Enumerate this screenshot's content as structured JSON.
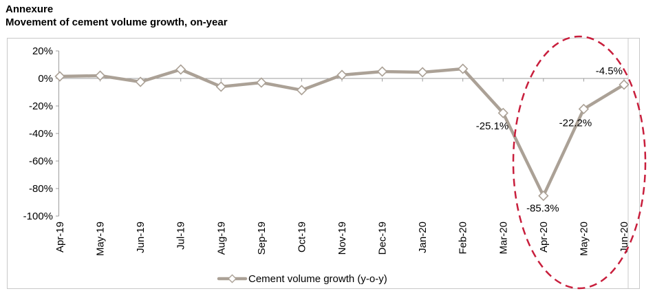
{
  "title": "Annexure",
  "subtitle": "Movement of cement volume growth, on-year",
  "chart_data": {
    "type": "line",
    "title": "Movement of cement volume growth, on-year",
    "categories": [
      "Apr-19",
      "May-19",
      "Jun-19",
      "Jul-19",
      "Aug-19",
      "Sep-19",
      "Oct-19",
      "Nov-19",
      "Dec-19",
      "Jan-20",
      "Feb-20",
      "Mar-20",
      "Apr-20",
      "May-20",
      "Jun-20"
    ],
    "series": [
      {
        "name": "Cement volume growth (y-o-y)",
        "values": [
          1.5,
          2,
          -2.5,
          6.5,
          -6,
          -3,
          -8.5,
          2.5,
          5,
          4.5,
          7,
          -25.1,
          -85.3,
          -22.2,
          -4.5
        ]
      }
    ],
    "y_ticks": [
      "20%",
      "0%",
      "-20%",
      "-40%",
      "-60%",
      "-80%",
      "-100%"
    ],
    "y_tick_values": [
      20,
      0,
      -20,
      -40,
      -60,
      -80,
      -100
    ],
    "ylim": [
      -100,
      20
    ],
    "grid": "only zero axis line",
    "legend": "Cement volume growth (y-o-y)",
    "legend_position": "bottom-center",
    "data_labels": [
      {
        "category": "Mar-20",
        "text": "-25.1%"
      },
      {
        "category": "Apr-20",
        "text": "-85.3%"
      },
      {
        "category": "May-20",
        "text": "-22.2%"
      },
      {
        "category": "Jun-20",
        "text": "-4.5%"
      }
    ],
    "annotation": "red dashed ellipse highlighting Apr-20 to Jun-20",
    "colors": {
      "line": "#ABA196",
      "marker_fill": "#FFFFFF",
      "marker_stroke": "#ABA196",
      "axis": "#9C9C9C",
      "border": "#C8C8C8",
      "ellipse": "#C81E3C",
      "text": "#000000"
    }
  }
}
